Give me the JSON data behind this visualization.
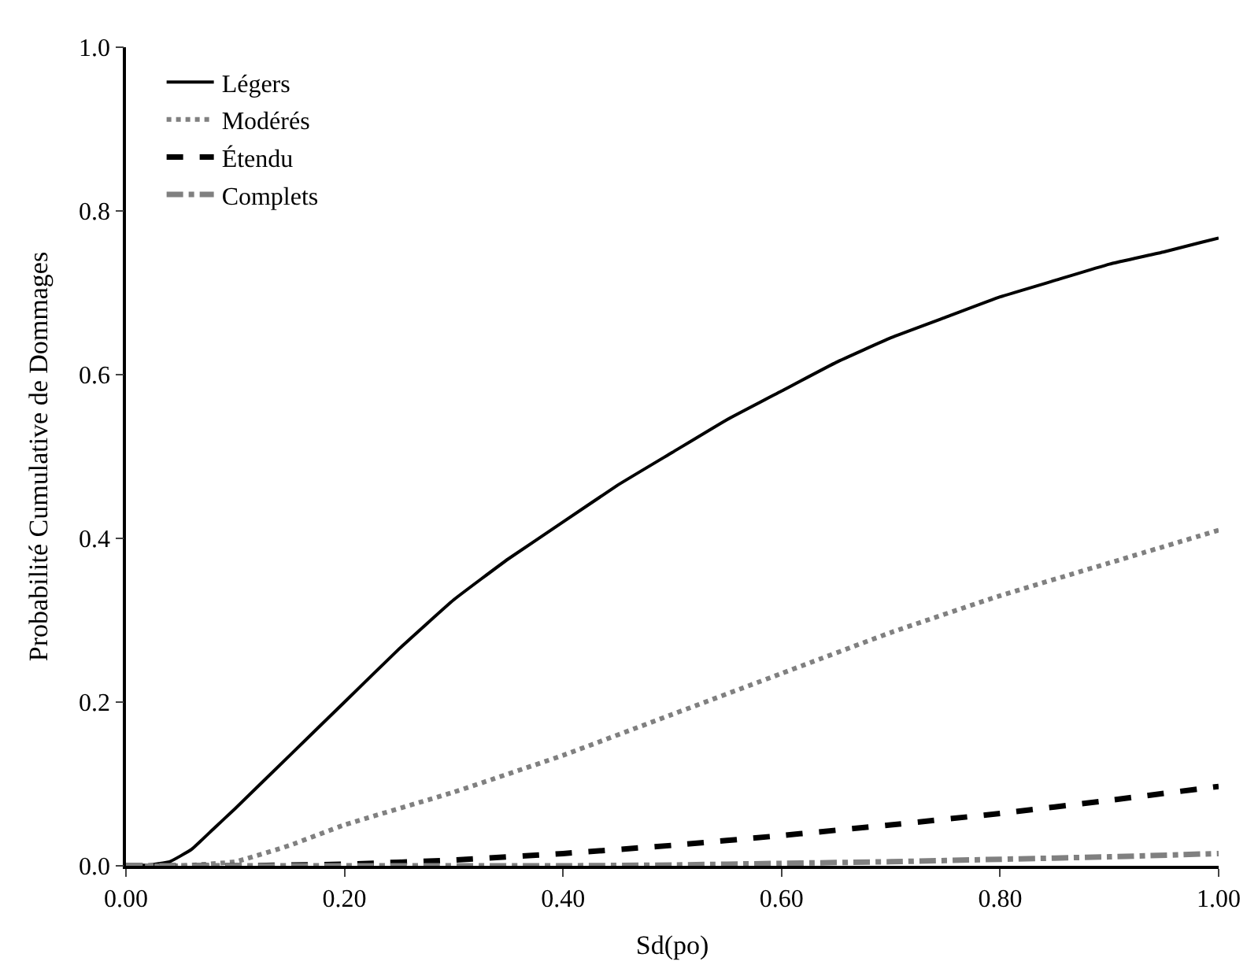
{
  "chart_data": {
    "type": "line",
    "xlabel": "Sd(po)",
    "ylabel": "Probabilité Cumulative de Dommages",
    "xlim": [
      0,
      1
    ],
    "ylim": [
      0,
      1
    ],
    "xticks": [
      {
        "value": 0,
        "label": "0.00"
      },
      {
        "value": 0.2,
        "label": "0.20"
      },
      {
        "value": 0.4,
        "label": "0.40"
      },
      {
        "value": 0.6,
        "label": "0.60"
      },
      {
        "value": 0.8,
        "label": "0.80"
      },
      {
        "value": 1,
        "label": "1.00"
      }
    ],
    "yticks": [
      {
        "value": 0,
        "label": "0.0"
      },
      {
        "value": 0.2,
        "label": "0.2"
      },
      {
        "value": 0.4,
        "label": "0.4"
      },
      {
        "value": 0.6,
        "label": "0.6"
      },
      {
        "value": 0.8,
        "label": "0.8"
      },
      {
        "value": 1,
        "label": "1.0"
      }
    ],
    "legend": "top left",
    "marker": "none",
    "series": [
      {
        "name": "Légers",
        "color": "#000000",
        "line_style": "solid",
        "x": [
          0,
          0.02,
          0.04,
          0.06,
          0.08,
          0.1,
          0.15,
          0.2,
          0.25,
          0.3,
          0.35,
          0.4,
          0.45,
          0.5,
          0.55,
          0.6,
          0.65,
          0.7,
          0.75,
          0.8,
          0.85,
          0.9,
          0.95,
          1.0
        ],
        "values": [
          0,
          0.001,
          0.005,
          0.02,
          0.045,
          0.07,
          0.135,
          0.2,
          0.265,
          0.325,
          0.375,
          0.42,
          0.465,
          0.505,
          0.545,
          0.58,
          0.615,
          0.645,
          0.67,
          0.695,
          0.715,
          0.735,
          0.75,
          0.767
        ]
      },
      {
        "name": "Modérés",
        "color": "#808080",
        "line_style": "dotted",
        "x": [
          0,
          0.05,
          0.1,
          0.15,
          0.2,
          0.3,
          0.4,
          0.5,
          0.6,
          0.7,
          0.8,
          0.9,
          1.0
        ],
        "values": [
          0,
          0,
          0.005,
          0.025,
          0.05,
          0.09,
          0.135,
          0.185,
          0.235,
          0.285,
          0.33,
          0.37,
          0.41
        ]
      },
      {
        "name": "Étendu",
        "color": "#000000",
        "line_style": "dashed",
        "x": [
          0,
          0.1,
          0.2,
          0.3,
          0.4,
          0.5,
          0.6,
          0.7,
          0.8,
          0.9,
          1.0
        ],
        "values": [
          0,
          0,
          0.002,
          0.007,
          0.015,
          0.025,
          0.037,
          0.05,
          0.064,
          0.08,
          0.097
        ]
      },
      {
        "name": "Complets",
        "color": "#808080",
        "line_style": "dashdot",
        "x": [
          0,
          0.2,
          0.4,
          0.5,
          0.6,
          0.7,
          0.8,
          0.9,
          1.0
        ],
        "values": [
          0,
          0,
          0,
          0.001,
          0.003,
          0.005,
          0.008,
          0.011,
          0.015
        ]
      }
    ]
  }
}
